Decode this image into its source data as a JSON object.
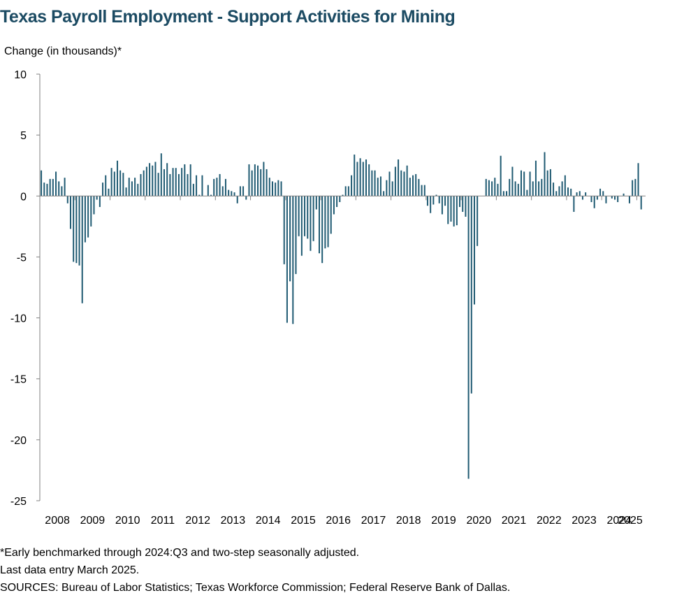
{
  "chart_data": {
    "type": "bar",
    "title": "Texas Payroll Employment - Support Activities for Mining",
    "ylabel": "Change (in thousands)*",
    "xlabel": "",
    "ylim": [
      -25,
      10
    ],
    "yticks": [
      10,
      5,
      0,
      -5,
      -10,
      -15,
      -20,
      -25
    ],
    "x_tick_labels": [
      "2008",
      "2009",
      "2010",
      "2011",
      "2012",
      "2013",
      "2014",
      "2015",
      "2016",
      "2017",
      "2018",
      "2019",
      "2020",
      "2021",
      "2022",
      "2023",
      "2024",
      "2025"
    ],
    "start": "2008-01",
    "end": "2025-03",
    "bar_color": "#1f5a72",
    "grid": false,
    "series": [
      {
        "values": [
          2.1,
          1.1,
          1.0,
          1.4,
          1.4,
          2.0,
          1.2,
          0.8,
          1.5,
          -0.6,
          -2.7,
          -5.4,
          -5.5,
          -5.7,
          -8.8,
          -3.8,
          -3.4,
          -2.5,
          -1.5,
          -0.3,
          -0.9,
          1.1,
          1.7,
          0.6,
          2.3,
          2.0,
          2.9,
          2.1,
          1.9,
          0.7,
          1.5,
          1.2,
          1.5,
          1.0,
          1.8,
          2.1,
          2.4,
          2.7,
          2.5,
          2.8,
          1.9,
          3.5,
          2.2,
          2.7,
          1.8,
          2.3,
          2.3,
          1.8,
          2.3,
          2.6,
          1.8,
          2.6,
          1.0,
          1.7,
          0.1,
          1.7,
          0.0,
          0.9,
          0.1,
          1.4,
          1.5,
          1.8,
          0.8,
          1.4,
          0.5,
          0.4,
          0.3,
          -0.6,
          0.8,
          0.8,
          -0.3,
          2.6,
          2.1,
          2.6,
          2.5,
          2.2,
          2.8,
          2.2,
          1.5,
          1.2,
          1.1,
          1.3,
          1.2,
          -5.6,
          -10.4,
          -7.0,
          -10.5,
          -6.4,
          -3.3,
          -4.9,
          -3.3,
          -3.5,
          -4.5,
          -3.7,
          -1.1,
          -4.7,
          -5.5,
          -4.3,
          -4.2,
          -3.1,
          -1.5,
          -0.9,
          -0.5,
          0.1,
          0.8,
          0.8,
          1.7,
          3.4,
          2.8,
          3.1,
          2.8,
          3.0,
          2.6,
          2.1,
          2.1,
          1.5,
          1.6,
          0.4,
          1.3,
          2.0,
          1.2,
          2.4,
          3.0,
          2.1,
          2.0,
          2.5,
          1.5,
          1.7,
          1.8,
          1.4,
          0.9,
          0.9,
          -0.8,
          -1.4,
          -0.7,
          0.1,
          -0.6,
          -1.5,
          -0.8,
          -2.3,
          -2.1,
          -2.5,
          -2.4,
          -0.9,
          -1.3,
          -1.7,
          -23.2,
          -16.2,
          -8.9,
          -4.1,
          0.0,
          0.0,
          1.4,
          1.3,
          1.2,
          1.5,
          1.0,
          3.3,
          0.4,
          0.4,
          1.4,
          2.4,
          1.2,
          1.0,
          2.1,
          2.0,
          0.5,
          2.0,
          1.2,
          2.9,
          1.2,
          1.4,
          3.6,
          2.1,
          2.2,
          1.1,
          0.4,
          0.8,
          1.2,
          1.7,
          0.7,
          0.6,
          -1.3,
          0.3,
          0.4,
          -0.3,
          0.3,
          0.0,
          -0.5,
          -1.0,
          -0.3,
          0.6,
          0.4,
          -0.6,
          0.0,
          -0.2,
          -0.3,
          -0.5,
          0.0,
          0.2,
          0.0,
          -0.6,
          1.3,
          1.4,
          2.7,
          -1.1,
          0.0
        ]
      }
    ]
  },
  "footnotes": [
    "*Early benchmarked through 2024:Q3 and two-step seasonally adjusted.",
    "Last data entry March 2025.",
    "SOURCES: Bureau of Labor Statistics; Texas Workforce Commission; Federal Reserve Bank of Dallas."
  ]
}
